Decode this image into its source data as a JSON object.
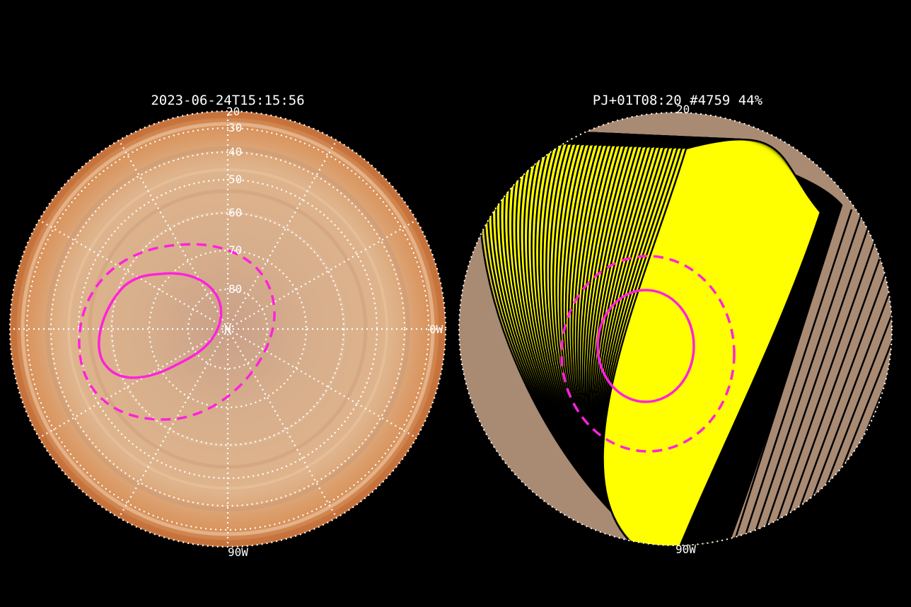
{
  "left_panel": {
    "title": "2023-06-24T15:15:56",
    "pole_label": "N",
    "lat_labels": [
      "20",
      "30",
      "40",
      "50",
      "60",
      "70",
      "80"
    ],
    "lon_label_right": "0W",
    "lon_label_bottom": "90W",
    "colors": {
      "disk": "#d9a97e",
      "grid": "#ffffff",
      "oval": "#ff22dd"
    }
  },
  "right_panel": {
    "title": "PJ+01T08:20 #4759 44%",
    "lat_label_top": "20",
    "lon_label_bottom": "90W",
    "colors": {
      "footprint_fill": "#ffff00",
      "footprint_edge": "#000000",
      "oval": "#ff22dd"
    }
  }
}
